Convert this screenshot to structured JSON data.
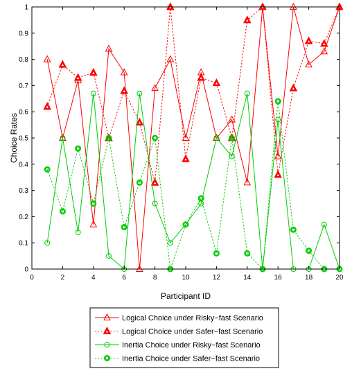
{
  "chart_data": {
    "type": "line",
    "title": "",
    "xlabel": "Participant ID",
    "ylabel": "Choice Rates",
    "xlim": [
      0,
      20
    ],
    "ylim": [
      0,
      1
    ],
    "x_ticks": [
      0,
      2,
      4,
      6,
      8,
      10,
      12,
      14,
      16,
      18,
      20
    ],
    "y_ticks": [
      0,
      0.1,
      0.2,
      0.3,
      0.4,
      0.5,
      0.6,
      0.7,
      0.8,
      0.9,
      1
    ],
    "grid": false,
    "legend_position": "below plot",
    "x": [
      1,
      2,
      3,
      4,
      5,
      6,
      7,
      8,
      9,
      10,
      11,
      12,
      13,
      14,
      15,
      16,
      17,
      18,
      19,
      20
    ],
    "series": [
      {
        "name": "Logical Choice under Risky−fast Scenario",
        "color": "#ff0000",
        "line_style": "solid",
        "marker": "triangle-open",
        "values": [
          0.8,
          0.5,
          0.72,
          0.17,
          0.84,
          0.75,
          0.0,
          0.69,
          0.8,
          0.5,
          0.75,
          0.5,
          0.57,
          0.33,
          1.0,
          0.43,
          1.0,
          0.78,
          0.83,
          1.0
        ]
      },
      {
        "name": "Logical Choice under Safer−fast Scenario",
        "color": "#ff0000",
        "line_style": "dotted",
        "marker": "triangle-filled",
        "values": [
          0.62,
          0.78,
          0.73,
          0.75,
          0.5,
          0.68,
          0.56,
          0.33,
          1.0,
          0.42,
          0.73,
          0.71,
          0.5,
          0.95,
          1.0,
          0.36,
          0.69,
          0.87,
          0.86,
          1.0
        ]
      },
      {
        "name": "Inertia Choice under Risky−fast Scenario",
        "color": "#00cc00",
        "line_style": "solid",
        "marker": "circle-open",
        "values": [
          0.1,
          0.5,
          0.14,
          0.67,
          0.05,
          0.0,
          0.67,
          0.25,
          0.1,
          0.17,
          0.25,
          0.5,
          0.43,
          0.67,
          0.0,
          0.57,
          0.0,
          0.0,
          0.17,
          0.0
        ]
      },
      {
        "name": "Inertia Choice under Safer−fast Scenario",
        "color": "#00cc00",
        "line_style": "dotted",
        "marker": "circle-bold",
        "values": [
          0.38,
          0.22,
          0.46,
          0.25,
          0.5,
          0.16,
          0.33,
          0.5,
          0.0,
          0.17,
          0.27,
          0.06,
          0.5,
          0.06,
          0.0,
          0.64,
          0.15,
          0.07,
          0.0,
          0.0
        ]
      }
    ]
  }
}
